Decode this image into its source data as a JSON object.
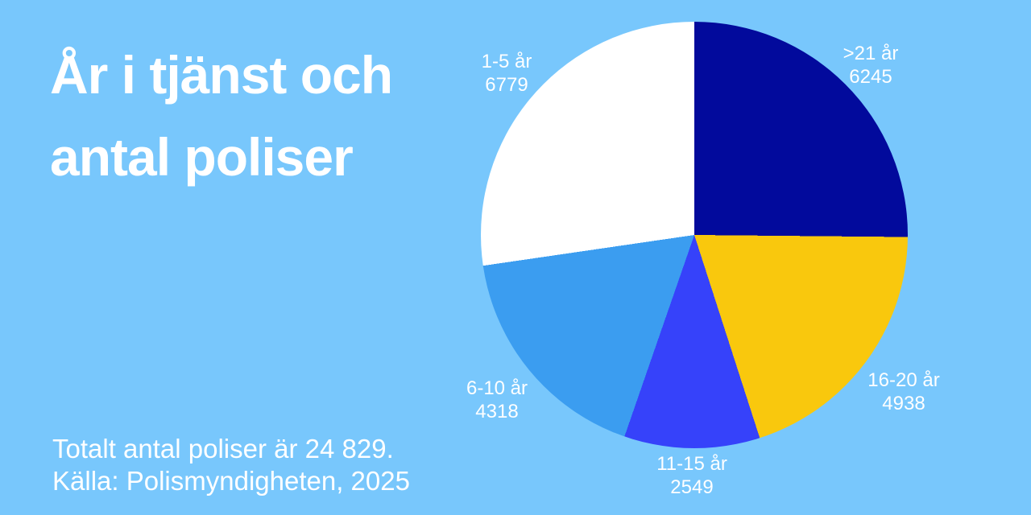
{
  "page": {
    "background_color": "#78C7FC",
    "text_color": "#FFFFFF"
  },
  "title": {
    "line1": "År i tjänst och",
    "line2": "antal poliser"
  },
  "footer": {
    "line1": "Totalt antal poliser är 24 829.",
    "line2": "Källa: Polismyndigheten, 2025"
  },
  "chart_data": {
    "type": "pie",
    "title": "År i tjänst och antal poliser",
    "total": 24829,
    "start_angle_deg": 0,
    "direction": "clockwise",
    "legend_position": "labels-outside-slices",
    "slices": [
      {
        "label": ">21 år",
        "value": 6245,
        "color": "#020A9C"
      },
      {
        "label": "16-20 år",
        "value": 4938,
        "color": "#F9C80D"
      },
      {
        "label": "11-15 år",
        "value": 2549,
        "color": "#3642FA"
      },
      {
        "label": "6-10 år",
        "value": 4318,
        "color": "#3B9DF0"
      },
      {
        "label": "1-5 år",
        "value": 6779,
        "color": "#FFFFFF"
      }
    ]
  }
}
